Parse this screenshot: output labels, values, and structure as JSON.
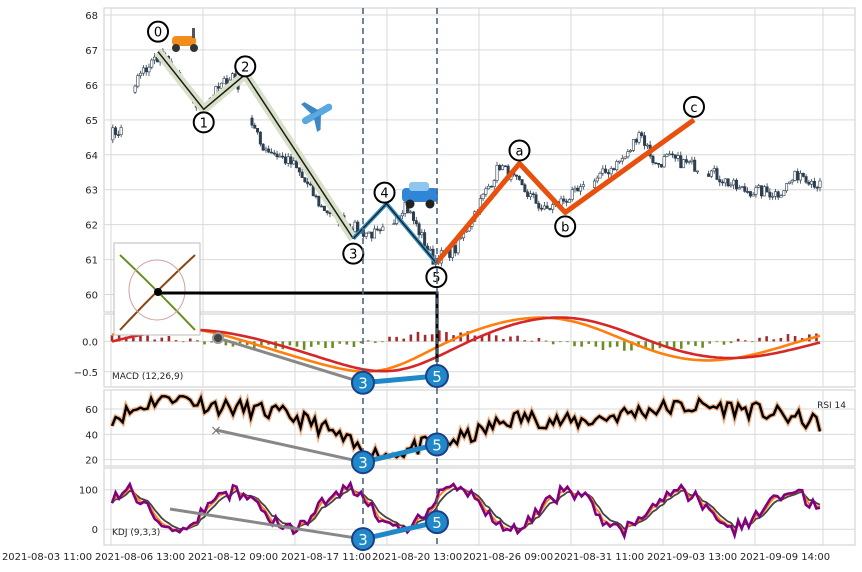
{
  "chart_data": [
    {
      "type": "candlestick",
      "panel": "price",
      "title": "",
      "xlabel": "",
      "ylabel": "",
      "ylim": [
        59.5,
        68.2
      ],
      "y_ticks": [
        "60",
        "61",
        "62",
        "63",
        "64",
        "65",
        "66",
        "67",
        "68"
      ],
      "x_ticks": [
        "2021-08-03 11:00",
        "2021-08-06 13:00",
        "2021-08-12 09:00",
        "2021-08-17 11:00",
        "2021-08-20 13:00",
        "2021-08-26 09:00",
        "2021-08-31 11:00",
        "2021-09-03 13:00",
        "2021-09-09 14:00"
      ],
      "grid": true,
      "up_color": "#ffffff",
      "down_color": "#2c3e50",
      "closes_start": 64.6,
      "waves": {
        "impulse_labels": [
          "0",
          "1",
          "2",
          "3",
          "4",
          "5"
        ],
        "impulse_points": [
          [
            0.13,
            66.95
          ],
          [
            0.24,
            65.3
          ],
          [
            0.34,
            66.3
          ],
          [
            0.6,
            61.6
          ],
          [
            0.68,
            62.6
          ],
          [
            0.8,
            60.9
          ]
        ],
        "correction_labels": [
          "a",
          "b",
          "c"
        ],
        "correction_points": [
          [
            0.8,
            60.9
          ],
          [
            1.0,
            63.75
          ],
          [
            1.11,
            62.35
          ],
          [
            1.42,
            65.0
          ]
        ],
        "impulse_color": "#1a1a1a",
        "impulse_highlight_color": "#d8e0c8",
        "wave34_color": "#2e8bc0",
        "correction_color": "#e8500e"
      },
      "dashed_markers": [
        "2021-08-18 13:00",
        "2021-08-20 13:00"
      ],
      "icons": [
        "scooter-icon",
        "airplane-icon",
        "car-icon"
      ]
    },
    {
      "type": "bar+line",
      "panel": "macd",
      "label": "MACD (12,26,9)",
      "ylim": [
        -0.75,
        0.45
      ],
      "y_ticks": [
        "0.0",
        "−0.5"
      ],
      "series": [
        {
          "name": "",
          "color": "#ff7f0e"
        },
        {
          "name": "",
          "color": "#d62728"
        }
      ],
      "hist_pos_color": "#a52a2a",
      "hist_neg_color": "#6b8e23",
      "divergence_labels": [
        "3",
        "5"
      ],
      "divergence_values": [
        -0.68,
        -0.57
      ]
    },
    {
      "type": "line",
      "panel": "rsi",
      "label": "RSI 14",
      "ylim": [
        15,
        75
      ],
      "y_ticks": [
        "20",
        "40",
        "60"
      ],
      "series": [
        {
          "name": "",
          "color": "#000000"
        }
      ],
      "divergence_labels": [
        "3",
        "5"
      ],
      "divergence_values": [
        18,
        32
      ]
    },
    {
      "type": "line",
      "panel": "kdj",
      "label": "KDJ (9,3,3)",
      "ylim": [
        -40,
        155
      ],
      "y_ticks": [
        "100",
        "0"
      ],
      "series": [
        {
          "name": "",
          "color": "#444444"
        },
        {
          "name": "",
          "color": "#ff7f0e"
        },
        {
          "name": "",
          "color": "#800080"
        }
      ],
      "divergence_labels": [
        "3",
        "5"
      ],
      "divergence_values": [
        -25,
        18
      ]
    }
  ],
  "colors": {
    "grid": "#d9d9d9",
    "axis_text": "#262626",
    "marker_fill": "#1e88c8",
    "dashed_line": "#4d6680"
  }
}
